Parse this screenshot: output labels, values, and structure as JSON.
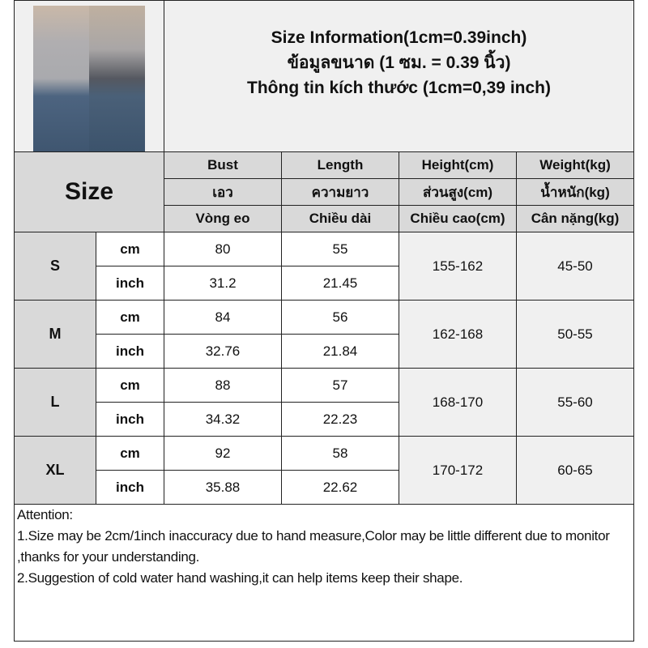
{
  "header": {
    "title_en": "Size Information(1cm=0.39inch)",
    "title_th": "ข้อมูลขนาด (1 ซม. = 0.39 นิ้ว)",
    "title_vi": "Thông tin kích thước (1cm=0,39 inch)"
  },
  "product_image": "model-front-back-photo",
  "size_label": "Size",
  "columns": [
    {
      "en": "Bust",
      "th": "เอว",
      "vi": "Vòng eo"
    },
    {
      "en": "Length",
      "th": "ความยาว",
      "vi": "Chiều dài"
    },
    {
      "en": "Height(cm)",
      "th": "ส่วนสูง(cm)",
      "vi": "Chiều cao(cm)"
    },
    {
      "en": "Weight(kg)",
      "th": "น้ำหนัก(kg)",
      "vi": "Cân nặng(kg)"
    }
  ],
  "units": {
    "cm": "cm",
    "inch": "inch"
  },
  "rows": [
    {
      "size": "S",
      "bust_cm": "80",
      "length_cm": "55",
      "bust_in": "31.2",
      "length_in": "21.45",
      "height": "155-162",
      "weight": "45-50"
    },
    {
      "size": "M",
      "bust_cm": "84",
      "length_cm": "56",
      "bust_in": "32.76",
      "length_in": "21.84",
      "height": "162-168",
      "weight": "50-55"
    },
    {
      "size": "L",
      "bust_cm": "88",
      "length_cm": "57",
      "bust_in": "34.32",
      "length_in": "22.23",
      "height": "168-170",
      "weight": "55-60"
    },
    {
      "size": "XL",
      "bust_cm": "92",
      "length_cm": "58",
      "bust_in": "35.88",
      "length_in": "22.62",
      "height": "170-172",
      "weight": "60-65"
    }
  ],
  "attention": {
    "title": "Attention:",
    "note1": "1.Size may be 2cm/1inch inaccuracy due to hand measure,Color may be little different due to monitor ,thanks for your understanding.",
    "note2": "2.Suggestion of cold water hand washing,it can help items keep their shape."
  }
}
